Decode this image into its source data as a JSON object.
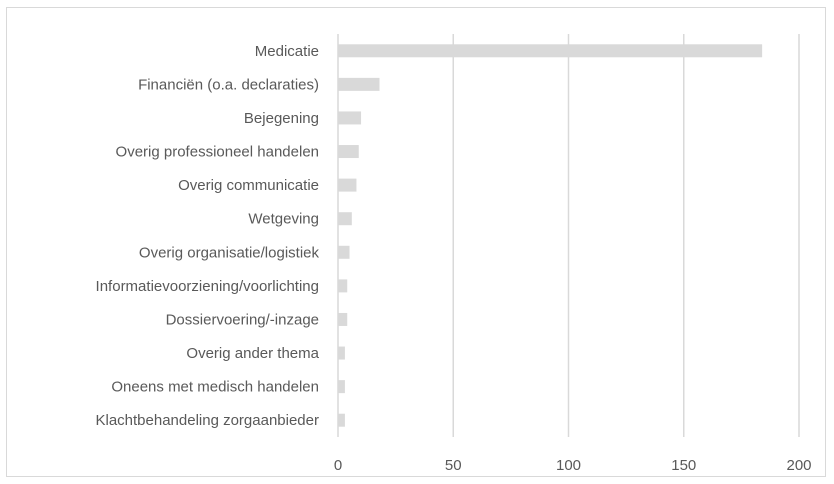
{
  "chart_data": {
    "type": "bar",
    "orientation": "horizontal",
    "categories": [
      "Medicatie",
      "Financiën (o.a. declaraties)",
      "Bejegening",
      "Overig professioneel handelen",
      "Overig communicatie",
      "Wetgeving",
      "Overig organisatie/logistiek",
      "Informatievoorziening/voorlichting",
      "Dossiervoering/-inzage",
      "Overig ander thema",
      "Oneens met medisch handelen",
      "Klachtbehandeling zorgaanbieder"
    ],
    "values": [
      184,
      18,
      10,
      9,
      8,
      6,
      5,
      4,
      4,
      3,
      3,
      3
    ],
    "xlim": [
      0,
      200
    ],
    "xticks": [
      0,
      50,
      100,
      150,
      200
    ],
    "title": "",
    "xlabel": "",
    "ylabel": "",
    "grid": "vertical",
    "colors": {
      "bar": "#d9d9d9",
      "grid": "#d9d9d9",
      "text": "#595959",
      "border": "#d9d9d9"
    }
  }
}
